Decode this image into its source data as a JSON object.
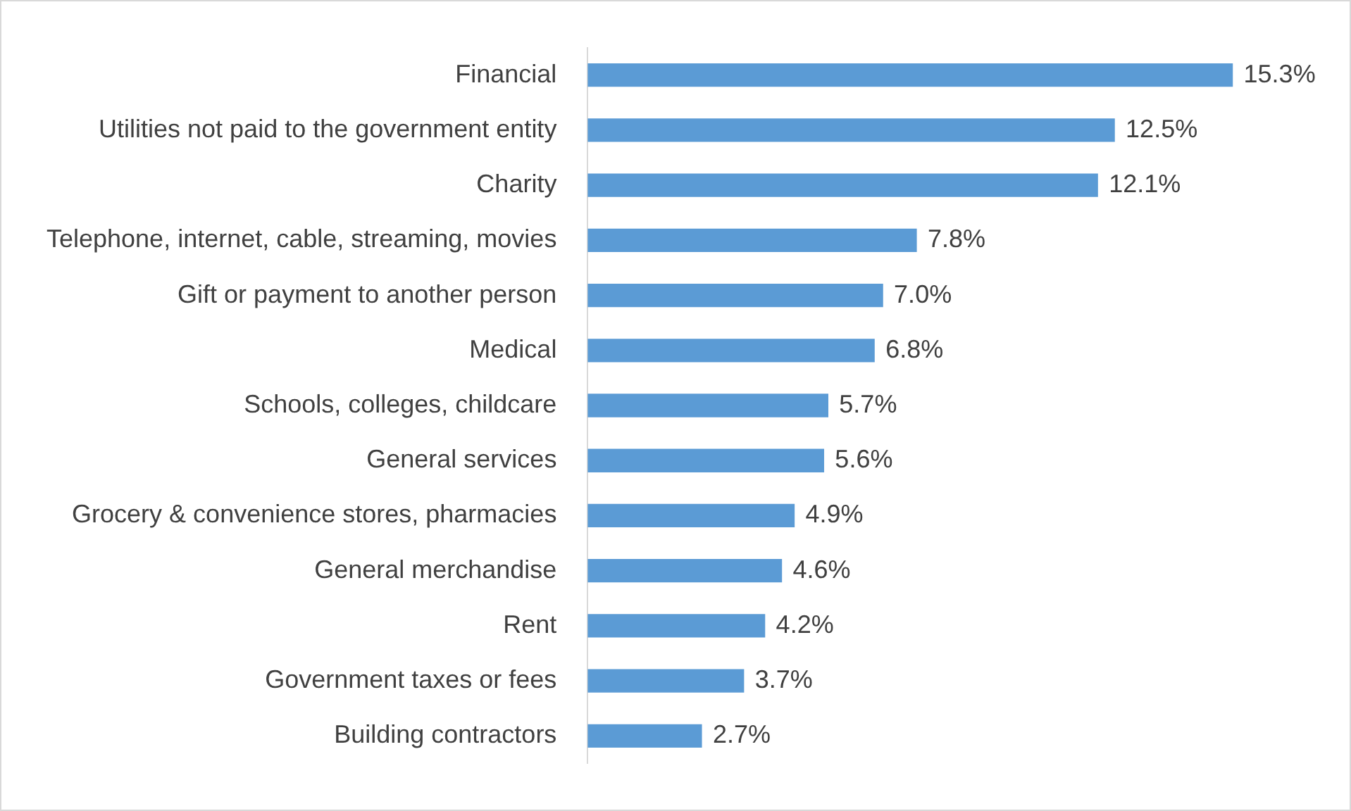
{
  "chart_data": {
    "type": "bar",
    "orientation": "horizontal",
    "categories": [
      "Financial",
      "Utilities not paid to the government entity",
      "Charity",
      "Telephone, internet, cable, streaming, movies",
      "Gift or payment to another person",
      "Medical",
      "Schools, colleges, childcare",
      "General services",
      "Grocery & convenience stores, pharmacies",
      "General merchandise",
      "Rent",
      "Government taxes or fees",
      "Building contractors"
    ],
    "values": [
      15.3,
      12.5,
      12.1,
      7.8,
      7.0,
      6.8,
      5.7,
      5.6,
      4.9,
      4.6,
      4.2,
      3.7,
      2.7
    ],
    "value_labels": [
      "15.3%",
      "12.5%",
      "12.1%",
      "7.8%",
      "7.0%",
      "6.8%",
      "5.7%",
      "5.6%",
      "4.9%",
      "4.6%",
      "4.2%",
      "3.7%",
      "2.7%"
    ],
    "color": "#5b9bd5",
    "legend": false,
    "tick_labels": "y"
  }
}
